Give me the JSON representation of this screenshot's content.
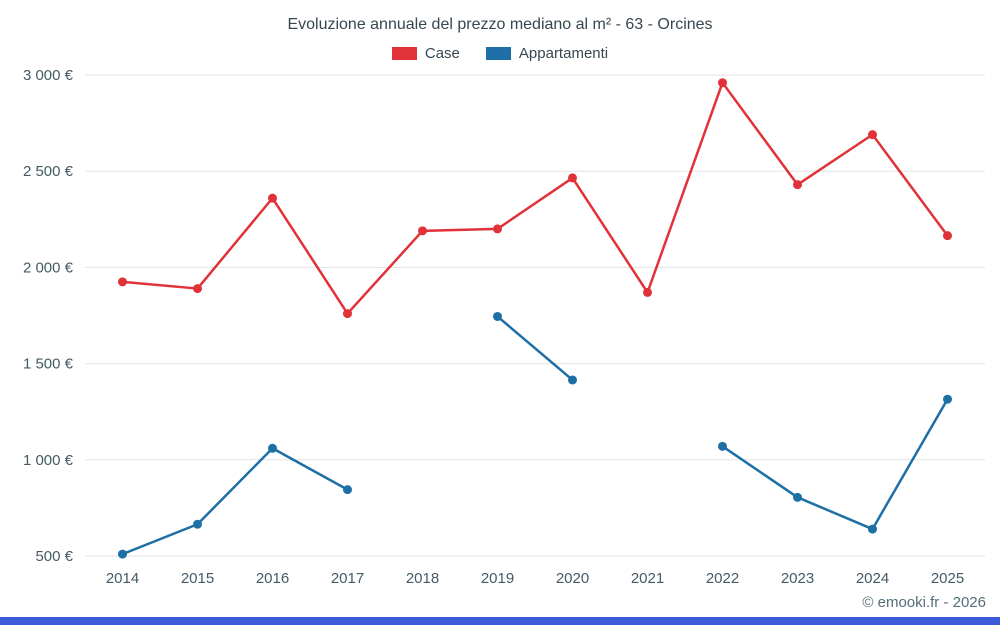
{
  "chart": {
    "copyright": "© emooki.fr - 2026",
    "footer_bar_color": "#3b5bdb",
    "grid_color": "#e3e3e3",
    "axis_text_color": "#455a64"
  },
  "chart_data": {
    "type": "line",
    "title": "Evoluzione annuale del prezzo mediano al m² - 63 - Orcines",
    "categories": [
      "2014",
      "2015",
      "2016",
      "2017",
      "2018",
      "2019",
      "2020",
      "2021",
      "2022",
      "2023",
      "2024",
      "2025"
    ],
    "series": [
      {
        "name": "Case",
        "color": "#e03238",
        "values": [
          1925,
          1890,
          2360,
          1760,
          2190,
          2200,
          2465,
          1870,
          2960,
          2430,
          2690,
          2165
        ]
      },
      {
        "name": "Appartamenti",
        "color": "#1d6fa5",
        "values": [
          510,
          665,
          1060,
          845,
          null,
          1745,
          1415,
          null,
          1070,
          805,
          640,
          1315
        ]
      }
    ],
    "ylim": [
      500,
      3000
    ],
    "ytick_step": 500,
    "yticks": [
      {
        "value": 3000,
        "label": "3 000 €"
      },
      {
        "value": 2500,
        "label": "2 500 €"
      },
      {
        "value": 2000,
        "label": "2 000 €"
      },
      {
        "value": 1500,
        "label": "1 500 €"
      },
      {
        "value": 1000,
        "label": "1 000 €"
      },
      {
        "value": 500,
        "label": "500 €"
      }
    ],
    "grid": "horizontal",
    "legend_position": "top",
    "xlabel": "",
    "ylabel": ""
  }
}
